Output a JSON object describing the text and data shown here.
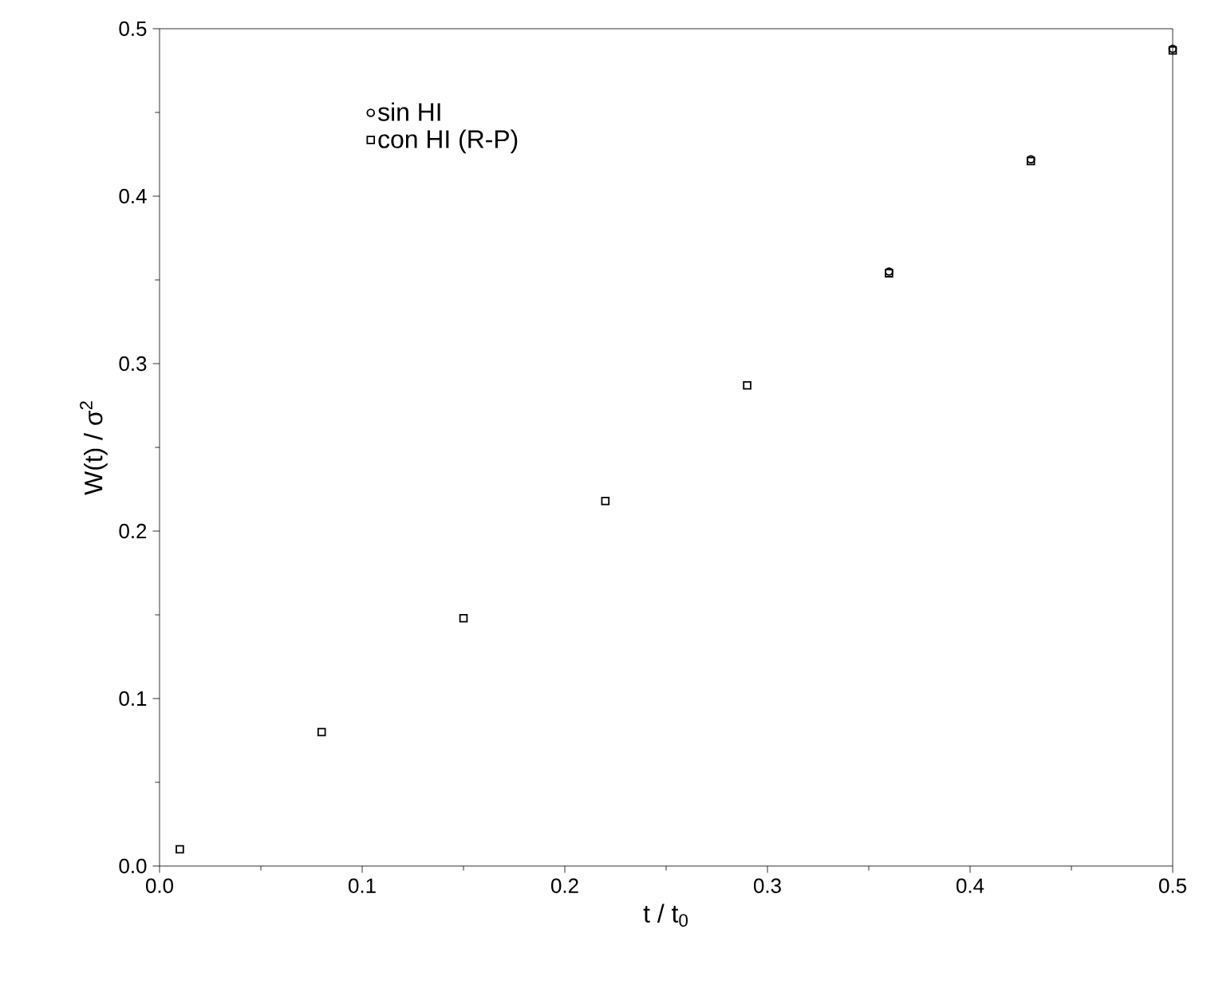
{
  "chart_data": {
    "type": "scatter",
    "xlabel": "t / t$_{0}$",
    "ylabel": "W(t) / σ$^{2}$",
    "x": [
      0.01,
      0.08,
      0.15,
      0.22,
      0.29,
      0.36,
      0.43,
      0.5
    ],
    "series": [
      {
        "name": "sin HI",
        "color": "#000000",
        "marker": "circle",
        "values": [
          null,
          null,
          null,
          null,
          null,
          0.355,
          0.422,
          0.488
        ]
      },
      {
        "name": "con HI (R-P)",
        "color": "#000000",
        "marker": "square",
        "values": [
          0.01,
          0.08,
          0.148,
          0.218,
          0.287,
          0.354,
          0.421,
          0.487
        ]
      }
    ],
    "xlim": [
      0,
      0.5
    ],
    "ylim": [
      0,
      0.5
    ],
    "xticks": [
      {
        "value": 0,
        "label": "0.0"
      },
      {
        "value": 0.1,
        "label": "0.1"
      },
      {
        "value": 0.2,
        "label": "0.2"
      },
      {
        "value": 0.3,
        "label": "0.3"
      },
      {
        "value": 0.4,
        "label": "0.4"
      },
      {
        "value": 0.5,
        "label": "0.5"
      }
    ],
    "yticks": [
      {
        "value": 0,
        "label": "0.0"
      },
      {
        "value": 0.1,
        "label": "0.1"
      },
      {
        "value": 0.2,
        "label": "0.2"
      },
      {
        "value": 0.3,
        "label": "0.3"
      },
      {
        "value": 0.4,
        "label": "0.4"
      },
      {
        "value": 0.5,
        "label": "0.5"
      }
    ],
    "legend": "top left",
    "grid": false
  }
}
